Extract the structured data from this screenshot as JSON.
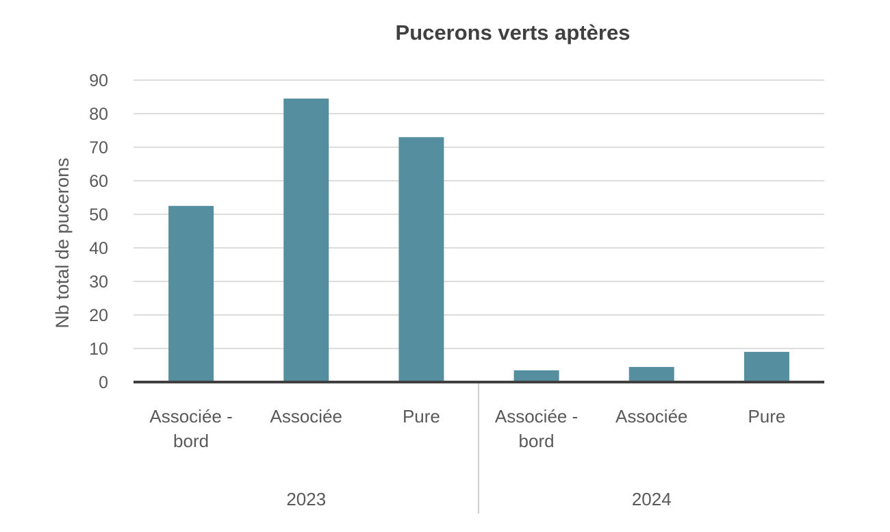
{
  "chart_data": {
    "type": "bar",
    "title": "Pucerons verts aptères",
    "xlabel": "",
    "ylabel": "Nb total de pucerons",
    "ylim": [
      0,
      90
    ],
    "yticks": [
      0,
      10,
      20,
      30,
      40,
      50,
      60,
      70,
      80,
      90
    ],
    "grid": true,
    "legend": "none",
    "bar_color": "#558e9e",
    "groups": [
      {
        "label": "2023",
        "categories": [
          [
            "Associée -",
            "bord"
          ],
          [
            "Associée"
          ],
          [
            "Pure"
          ]
        ],
        "values": [
          52.5,
          84.5,
          73
        ]
      },
      {
        "label": "2024",
        "categories": [
          [
            "Associée -",
            "bord"
          ],
          [
            "Associée"
          ],
          [
            "Pure"
          ]
        ],
        "values": [
          3.5,
          4.5,
          9
        ]
      }
    ]
  }
}
